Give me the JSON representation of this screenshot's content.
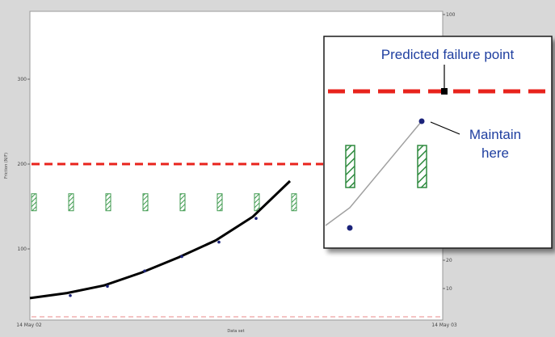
{
  "chart_data": {
    "type": "line",
    "title": "",
    "xlabel": "Data set",
    "ylabel": "Friction (N/F)",
    "x_tick_labels": [
      "14 May 02",
      "14 May 03"
    ],
    "y_left": {
      "ticks": [
        100,
        200,
        300
      ],
      "ylim": [
        0,
        350
      ]
    },
    "y_right": {
      "ticks": [
        10,
        20,
        100
      ]
    },
    "threshold": {
      "value": 200,
      "style": "dashed",
      "color": "#e8231c"
    },
    "lower_threshold": {
      "value": 20,
      "style": "dashed",
      "color": "#e88a8a"
    },
    "trend_line": {
      "x": [
        0,
        1,
        2,
        3,
        4,
        5,
        6,
        7
      ],
      "y": [
        42,
        48,
        57,
        72,
        90,
        110,
        138,
        180
      ]
    },
    "points": {
      "x": [
        1,
        2,
        3,
        4,
        5,
        6
      ],
      "y": [
        45,
        56,
        74,
        91,
        108,
        136
      ]
    },
    "bars": {
      "x": [
        0,
        1,
        2,
        3,
        4,
        5,
        6,
        7
      ],
      "low": [
        145,
        145,
        145,
        145,
        145,
        145,
        145,
        145
      ],
      "high": [
        165,
        165,
        165,
        165,
        165,
        165,
        165,
        165
      ],
      "fill": "#4aa05a"
    },
    "grid": false,
    "legend": "none"
  },
  "callout": {
    "title": "Predicted failure point",
    "label_line1": "Maintain",
    "label_line2": "here"
  },
  "colors": {
    "trend": "#000000",
    "points": "#1b237a",
    "callout_text": "#1f3fa0",
    "threshold": "#e8231c"
  }
}
